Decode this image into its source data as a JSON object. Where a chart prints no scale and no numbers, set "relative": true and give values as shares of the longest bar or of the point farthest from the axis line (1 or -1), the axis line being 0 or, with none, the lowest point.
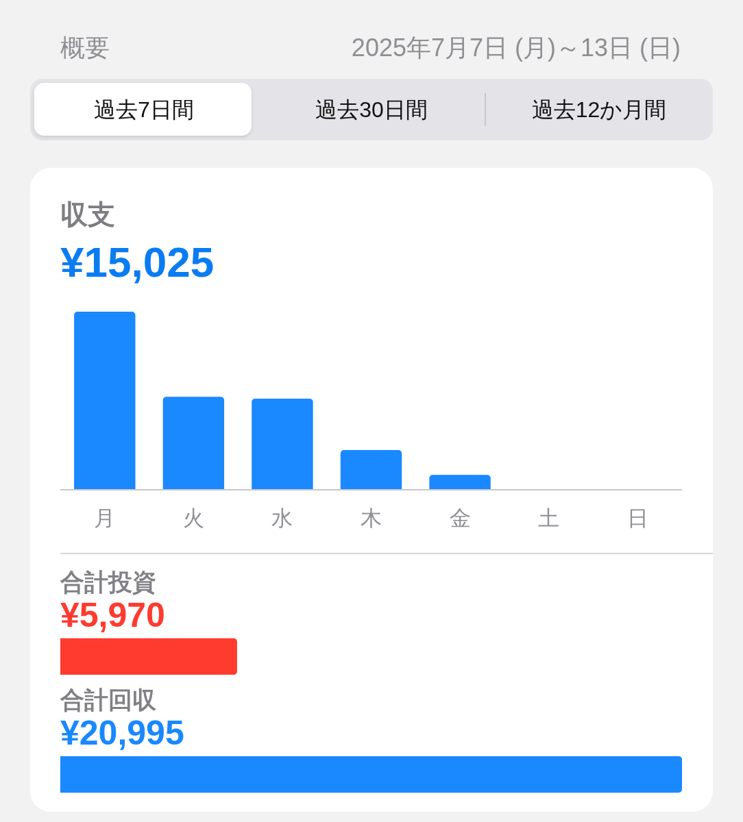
{
  "chart_data": [
    {
      "type": "bar",
      "title": "収支",
      "subtitle": "¥15,025",
      "annotations": [
        "概要",
        "2025年7月7日 (月)～13日 (日)",
        "過去7日間",
        "過去30日間",
        "過去12か月間"
      ],
      "categories": [
        "月",
        "火",
        "水",
        "木",
        "金",
        "土",
        "日"
      ],
      "values": [
        1,
        0.52,
        0.51,
        0.22,
        0.08,
        0,
        0
      ],
      "color": "#1a88ff",
      "relative": true
    },
    {
      "type": "bar",
      "orientation": "horizontal",
      "annotations": [
        "合計投資",
        "合計回収"
      ],
      "categories": [
        null,
        null
      ],
      "values": [
        5970,
        20995
      ],
      "colors": [
        "#ff3b30",
        "#1a88ff"
      ],
      "value_labels": [
        "¥5,970",
        "¥20,995"
      ]
    }
  ]
}
